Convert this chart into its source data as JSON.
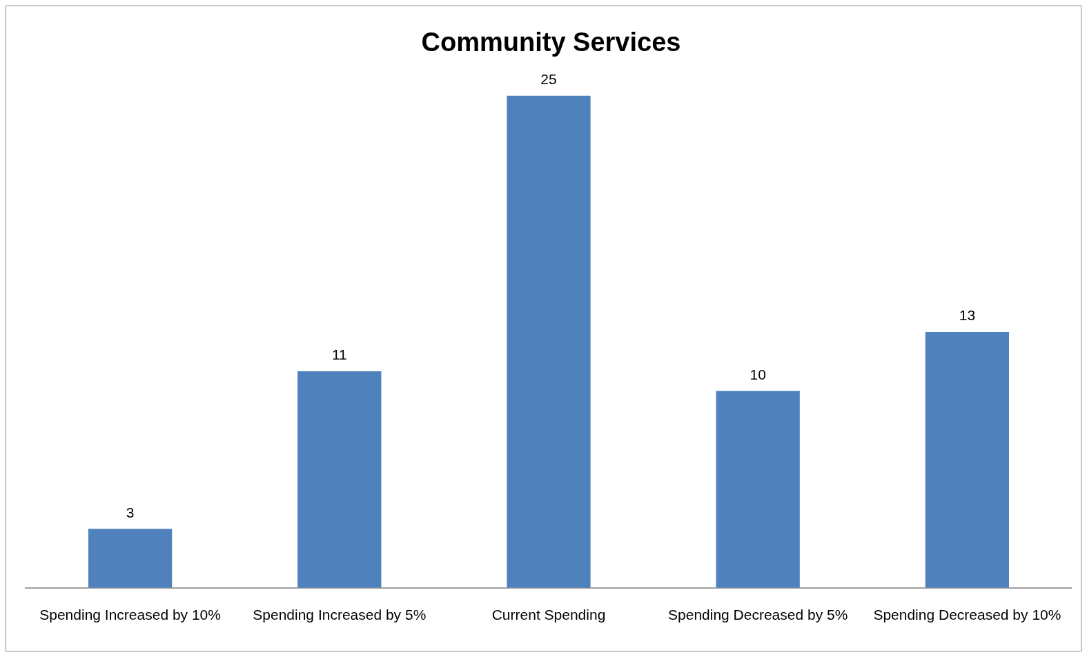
{
  "chart_data": {
    "type": "bar",
    "title": "Community Services",
    "categories": [
      "Spending Increased by 10%",
      "Spending Increased by 5%",
      "Current Spending",
      "Spending Decreased by 5%",
      "Spending Decreased by 10%"
    ],
    "values": [
      3,
      11,
      25,
      10,
      13
    ],
    "color": "#4f81bd",
    "data_labels": true,
    "grid": false
  }
}
